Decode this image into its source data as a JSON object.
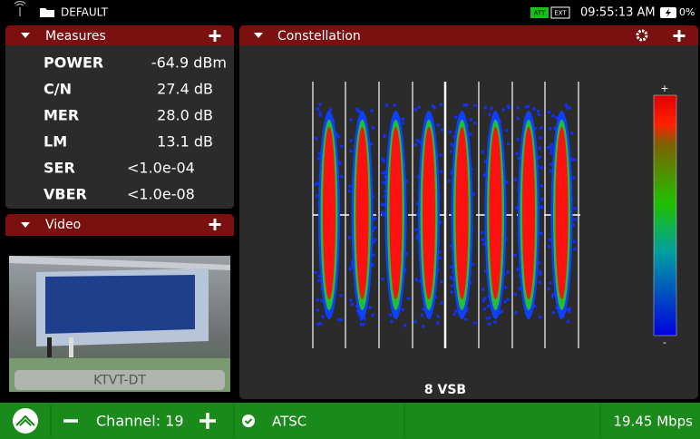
{
  "status_bar": {
    "profile": "DEFAULT",
    "badges": [
      "ATT",
      "EXT"
    ],
    "time": "09:55:13 AM",
    "battery": "0%"
  },
  "measures": {
    "title": "Measures",
    "rows": [
      {
        "label": "POWER",
        "value": "-64.9 dBm"
      },
      {
        "label": "C/N",
        "value": "27.4 dB"
      },
      {
        "label": "MER",
        "value": "28.0 dB"
      },
      {
        "label": "LM",
        "value": "13.1 dB"
      },
      {
        "label": "SER",
        "value": "<1.0e-04"
      },
      {
        "label": "VBER",
        "value": "<1.0e-08"
      }
    ]
  },
  "video": {
    "title": "Video",
    "channel_name": "KTVT-DT"
  },
  "constellation": {
    "title": "Constellation",
    "scale_max": "+",
    "scale_min": "-",
    "mode": "8 VSB"
  },
  "bottom_bar": {
    "channel": "Channel: 19",
    "standard": "ATSC",
    "bitrate": "19.45 Mbps"
  }
}
